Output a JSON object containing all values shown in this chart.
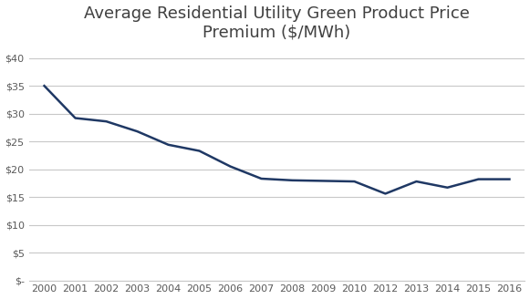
{
  "title": "Average Residential Utility Green Product Price\nPremium ($/MWh)",
  "x_labels": [
    "2000",
    "2001",
    "2002",
    "2003",
    "2004",
    "2005",
    "2006",
    "2007",
    "2008",
    "2009",
    "2010",
    "2012",
    "2013",
    "2014",
    "2015",
    "2016"
  ],
  "y_values": [
    35.0,
    29.2,
    28.6,
    26.8,
    24.4,
    23.3,
    20.5,
    18.3,
    18.0,
    17.9,
    17.8,
    15.6,
    17.8,
    16.7,
    18.2,
    18.2
  ],
  "line_color": "#1F3864",
  "line_width": 1.8,
  "ylim": [
    0,
    42
  ],
  "yticks": [
    0,
    5,
    10,
    15,
    20,
    25,
    30,
    35,
    40
  ],
  "ytick_labels": [
    "$-",
    "$5",
    "$10",
    "$15",
    "$20",
    "$25",
    "$30",
    "$35",
    "$40"
  ],
  "title_fontsize": 13,
  "tick_fontsize": 8,
  "background_color": "#ffffff",
  "grid_color": "#c8c8c8"
}
